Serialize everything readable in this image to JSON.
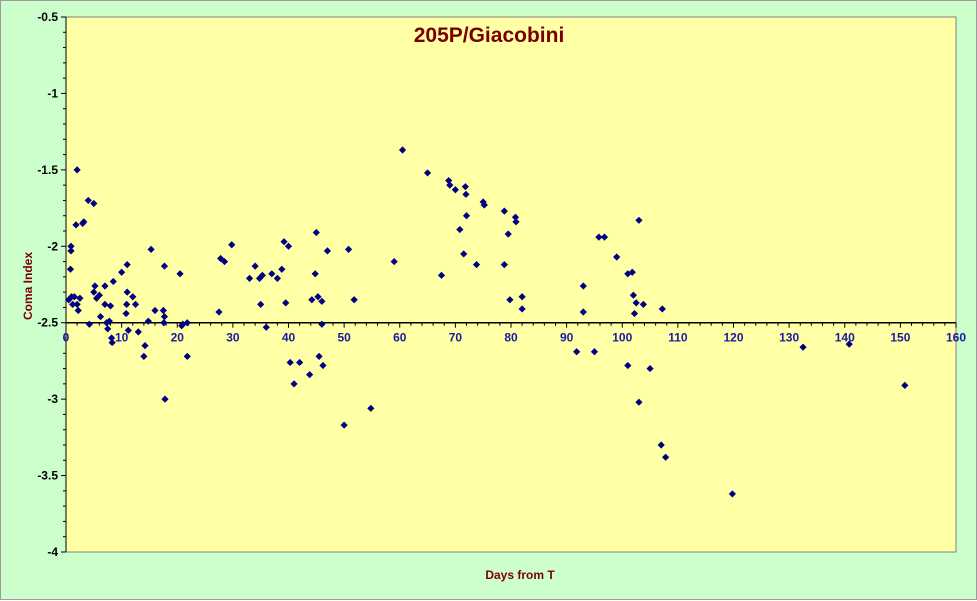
{
  "chart_data": {
    "type": "scatter",
    "title": "205P/Giacobini",
    "xlabel": "Days from T",
    "ylabel": "Coma Index",
    "xlim": [
      0,
      160
    ],
    "ylim": [
      -4,
      -0.5
    ],
    "x_ticks": [
      0,
      10,
      20,
      30,
      40,
      50,
      60,
      70,
      80,
      90,
      100,
      110,
      120,
      130,
      140,
      150,
      160
    ],
    "y_ticks": [
      -0.5,
      -1,
      -1.5,
      -2,
      -2.5,
      -3,
      -3.5,
      -4
    ],
    "x_axis_crosses_at": -2.5,
    "grid": false,
    "legend": "none",
    "colors": {
      "background": "#ccffcc",
      "plot_area": "#ffffa6",
      "marker": "#000080",
      "title": "#7a0000"
    },
    "series": [
      {
        "marker": "diamond",
        "points": [
          [
            0.5,
            -2.35
          ],
          [
            0.8,
            -2.15
          ],
          [
            0.9,
            -2.0
          ],
          [
            0.9,
            -2.03
          ],
          [
            1.0,
            -2.33
          ],
          [
            1.2,
            -2.38
          ],
          [
            1.5,
            -2.33
          ],
          [
            1.8,
            -1.86
          ],
          [
            2.0,
            -2.38
          ],
          [
            2.2,
            -2.42
          ],
          [
            2.0,
            -1.5
          ],
          [
            2.5,
            -2.34
          ],
          [
            3.0,
            -1.85
          ],
          [
            3.2,
            -1.84
          ],
          [
            4.0,
            -1.7
          ],
          [
            4.2,
            -2.51
          ],
          [
            5.0,
            -1.72
          ],
          [
            5.0,
            -2.3
          ],
          [
            5.2,
            -2.26
          ],
          [
            5.5,
            -2.34
          ],
          [
            6.0,
            -2.32
          ],
          [
            6.2,
            -2.46
          ],
          [
            7.0,
            -2.38
          ],
          [
            7.0,
            -2.26
          ],
          [
            7.3,
            -2.5
          ],
          [
            7.5,
            -2.54
          ],
          [
            7.8,
            -2.49
          ],
          [
            8.0,
            -2.39
          ],
          [
            8.2,
            -2.6
          ],
          [
            8.3,
            -2.63
          ],
          [
            8.5,
            -2.23
          ],
          [
            10.0,
            -2.17
          ],
          [
            10.8,
            -2.44
          ],
          [
            10.9,
            -2.38
          ],
          [
            11.0,
            -2.3
          ],
          [
            11.0,
            -2.12
          ],
          [
            11.2,
            -2.55
          ],
          [
            12.0,
            -2.33
          ],
          [
            12.5,
            -2.38
          ],
          [
            13.0,
            -2.56
          ],
          [
            14.0,
            -2.72
          ],
          [
            14.2,
            -2.65
          ],
          [
            14.8,
            -2.49
          ],
          [
            15.3,
            -2.02
          ],
          [
            16.0,
            -2.42
          ],
          [
            17.5,
            -2.42
          ],
          [
            17.6,
            -2.5
          ],
          [
            17.7,
            -2.46
          ],
          [
            17.7,
            -2.13
          ],
          [
            17.8,
            -3.0
          ],
          [
            20.5,
            -2.18
          ],
          [
            20.8,
            -2.52
          ],
          [
            21.0,
            -2.51
          ],
          [
            21.8,
            -2.5
          ],
          [
            21.8,
            -2.72
          ],
          [
            27.5,
            -2.43
          ],
          [
            27.8,
            -2.08
          ],
          [
            28.5,
            -2.1
          ],
          [
            29.8,
            -1.99
          ],
          [
            33.0,
            -2.21
          ],
          [
            34.0,
            -2.13
          ],
          [
            34.8,
            -2.21
          ],
          [
            35.0,
            -2.38
          ],
          [
            35.3,
            -2.19
          ],
          [
            36.0,
            -2.53
          ],
          [
            37.0,
            -2.18
          ],
          [
            38.0,
            -2.21
          ],
          [
            38.8,
            -2.15
          ],
          [
            39.2,
            -1.97
          ],
          [
            39.5,
            -2.37
          ],
          [
            40.0,
            -2.0
          ],
          [
            40.3,
            -2.76
          ],
          [
            41.0,
            -2.9
          ],
          [
            42.0,
            -2.76
          ],
          [
            43.8,
            -2.84
          ],
          [
            44.2,
            -2.35
          ],
          [
            44.8,
            -2.18
          ],
          [
            45.0,
            -1.91
          ],
          [
            45.3,
            -2.33
          ],
          [
            45.5,
            -2.72
          ],
          [
            46.0,
            -2.36
          ],
          [
            46.0,
            -2.51
          ],
          [
            46.2,
            -2.78
          ],
          [
            47.0,
            -2.03
          ],
          [
            50.0,
            -3.17
          ],
          [
            50.8,
            -2.02
          ],
          [
            51.8,
            -2.35
          ],
          [
            54.8,
            -3.06
          ],
          [
            59.0,
            -2.1
          ],
          [
            60.5,
            -1.37
          ],
          [
            65.0,
            -1.52
          ],
          [
            67.5,
            -2.19
          ],
          [
            68.8,
            -1.57
          ],
          [
            69.0,
            -1.6
          ],
          [
            70.0,
            -1.63
          ],
          [
            70.8,
            -1.89
          ],
          [
            71.5,
            -2.05
          ],
          [
            71.8,
            -1.61
          ],
          [
            71.9,
            -1.66
          ],
          [
            72.0,
            -1.8
          ],
          [
            73.8,
            -2.12
          ],
          [
            75.0,
            -1.71
          ],
          [
            75.2,
            -1.73
          ],
          [
            78.8,
            -1.77
          ],
          [
            78.8,
            -2.12
          ],
          [
            79.5,
            -1.92
          ],
          [
            79.8,
            -2.35
          ],
          [
            80.8,
            -1.81
          ],
          [
            80.9,
            -1.84
          ],
          [
            82.0,
            -2.33
          ],
          [
            82.0,
            -2.41
          ],
          [
            91.8,
            -2.69
          ],
          [
            93.0,
            -2.26
          ],
          [
            93.0,
            -2.43
          ],
          [
            95.0,
            -2.69
          ],
          [
            95.8,
            -1.94
          ],
          [
            96.8,
            -1.94
          ],
          [
            99.0,
            -2.07
          ],
          [
            101.0,
            -2.78
          ],
          [
            101.0,
            -2.18
          ],
          [
            101.8,
            -2.17
          ],
          [
            102.0,
            -2.32
          ],
          [
            102.2,
            -2.44
          ],
          [
            102.5,
            -2.37
          ],
          [
            103.0,
            -1.83
          ],
          [
            103.0,
            -3.02
          ],
          [
            103.8,
            -2.38
          ],
          [
            105.0,
            -2.8
          ],
          [
            107.0,
            -3.3
          ],
          [
            107.2,
            -2.41
          ],
          [
            107.8,
            -3.38
          ],
          [
            119.8,
            -3.62
          ],
          [
            132.5,
            -2.66
          ],
          [
            140.8,
            -2.64
          ],
          [
            150.8,
            -2.91
          ]
        ]
      }
    ]
  }
}
